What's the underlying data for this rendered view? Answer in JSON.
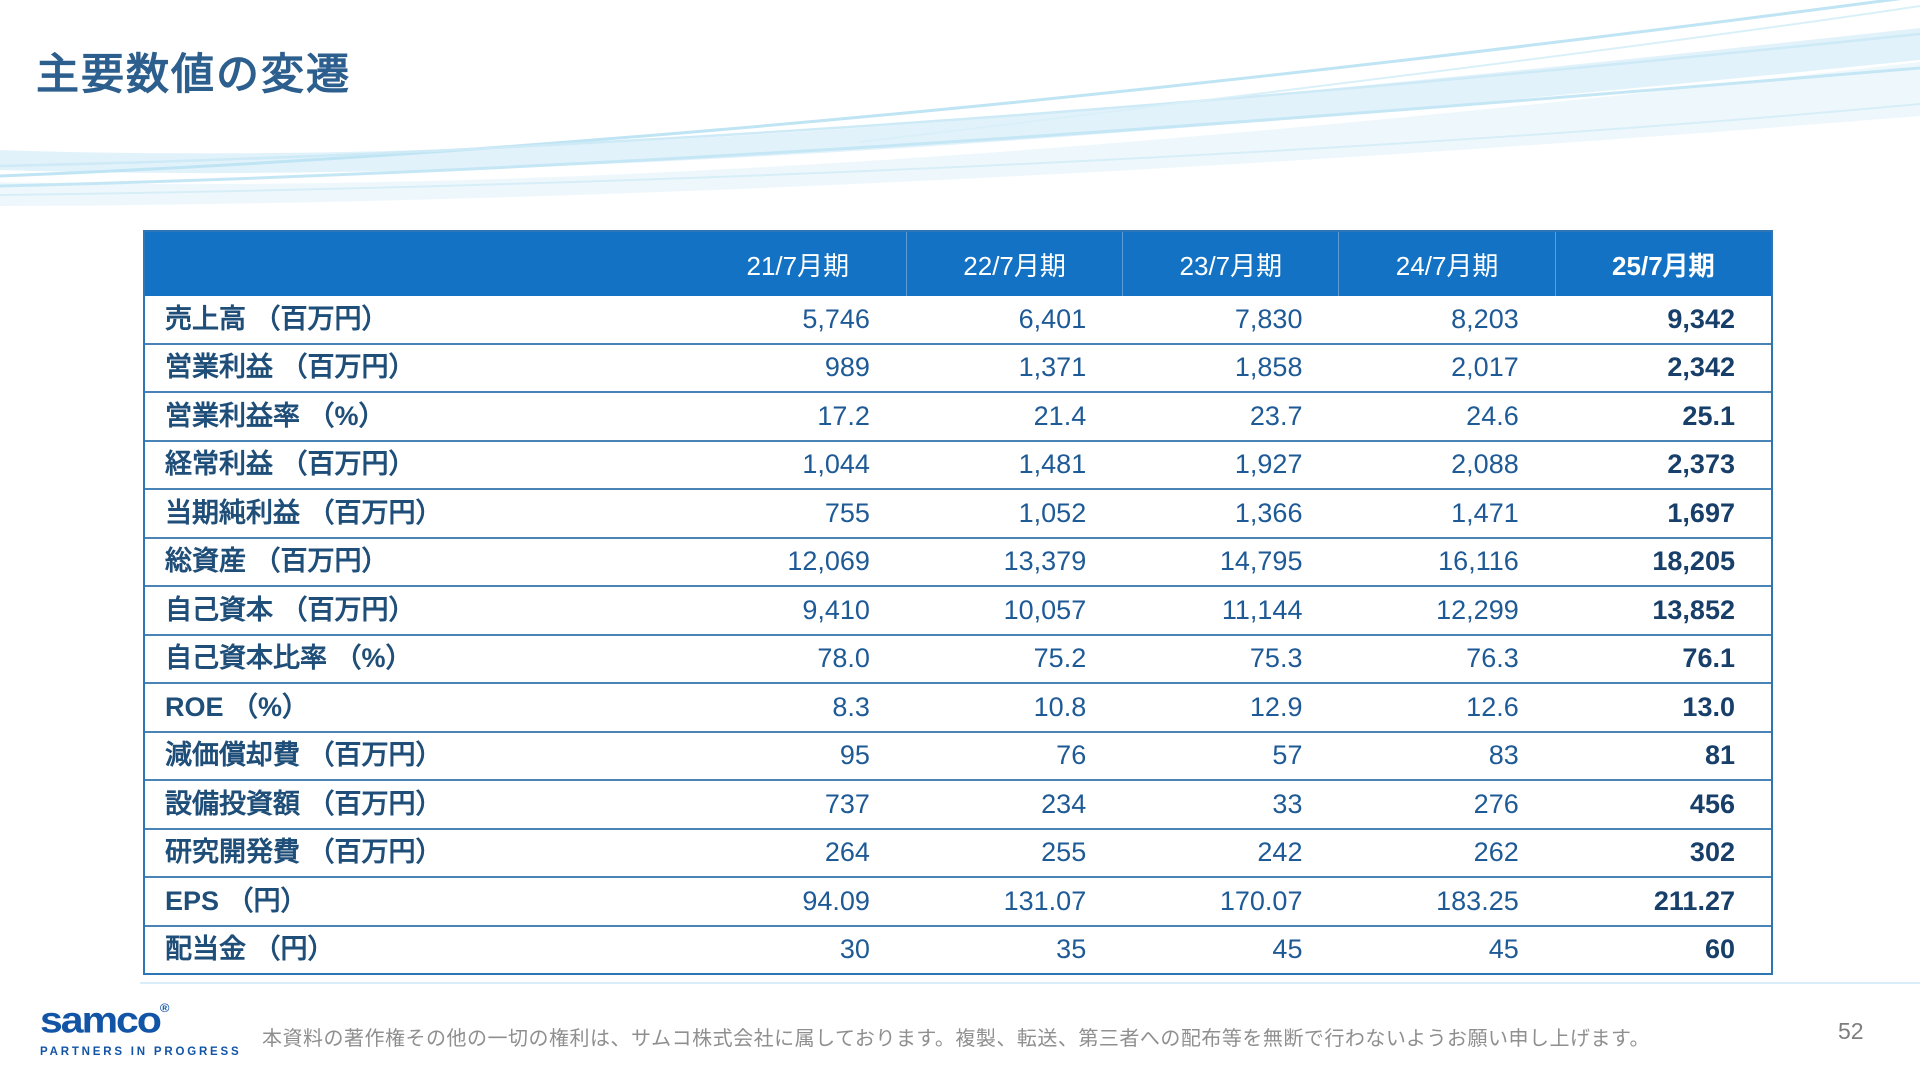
{
  "slide": {
    "title": "主要数値の変遷",
    "page_number": "52"
  },
  "table": {
    "columns": [
      "21/7月期",
      "22/7月期",
      "23/7月期",
      "24/7月期",
      "25/7月期"
    ],
    "highlight_column": "25/7月期",
    "rows": [
      {
        "label": "売上高 （百万円）",
        "values": [
          "5,746",
          "6,401",
          "7,830",
          "8,203",
          "9,342"
        ]
      },
      {
        "label": "営業利益 （百万円）",
        "values": [
          "989",
          "1,371",
          "1,858",
          "2,017",
          "2,342"
        ]
      },
      {
        "label": "営業利益率 （%）",
        "values": [
          "17.2",
          "21.4",
          "23.7",
          "24.6",
          "25.1"
        ]
      },
      {
        "label": "経常利益 （百万円）",
        "values": [
          "1,044",
          "1,481",
          "1,927",
          "2,088",
          "2,373"
        ]
      },
      {
        "label": "当期純利益 （百万円）",
        "values": [
          "755",
          "1,052",
          "1,366",
          "1,471",
          "1,697"
        ]
      },
      {
        "label": "総資産 （百万円）",
        "values": [
          "12,069",
          "13,379",
          "14,795",
          "16,116",
          "18,205"
        ]
      },
      {
        "label": "自己資本 （百万円）",
        "values": [
          "9,410",
          "10,057",
          "11,144",
          "12,299",
          "13,852"
        ]
      },
      {
        "label": "自己資本比率 （%）",
        "values": [
          "78.0",
          "75.2",
          "75.3",
          "76.3",
          "76.1"
        ]
      },
      {
        "label": "ROE （%）",
        "values": [
          "8.3",
          "10.8",
          "12.9",
          "12.6",
          "13.0"
        ]
      },
      {
        "label": "減価償却費 （百万円）",
        "values": [
          "95",
          "76",
          "57",
          "83",
          "81"
        ]
      },
      {
        "label": "設備投資額 （百万円）",
        "values": [
          "737",
          "234",
          "33",
          "276",
          "456"
        ]
      },
      {
        "label": "研究開発費 （百万円）",
        "values": [
          "264",
          "255",
          "242",
          "262",
          "302"
        ]
      },
      {
        "label": "EPS （円）",
        "values": [
          "94.09",
          "131.07",
          "170.07",
          "183.25",
          "211.27"
        ]
      },
      {
        "label": "配当金 （円）",
        "values": [
          "30",
          "35",
          "45",
          "45",
          "60"
        ]
      }
    ]
  },
  "footer": {
    "logo_text": "samco",
    "logo_registered": "®",
    "logo_tagline": "PARTNERS IN PROGRESS",
    "copyright": "本資料の著作権その他の一切の権利は、サムコ株式会社に属しております。複製、転送、第三者への配布等を無断で行わないようお願い申し上げます。"
  },
  "colors": {
    "header_bg": "#1372c4",
    "title_text": "#2c5f8e",
    "row_label_text": "#1f4e79",
    "value_text": "#1e5a96",
    "highlight_value_text": "#173f6a",
    "table_border": "#2e75b6",
    "row_separator": "#4a83b6",
    "footer_text": "#8f8f8f",
    "logo_blue": "#1254a6",
    "wave_light_blue": "#c9e8f6"
  }
}
